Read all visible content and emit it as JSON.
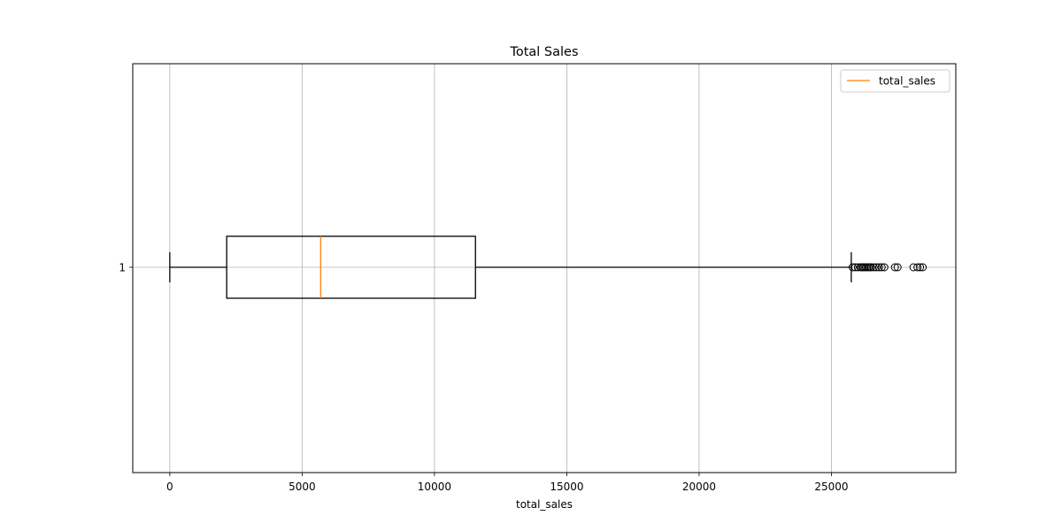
{
  "chart_data": {
    "type": "boxplot",
    "orientation": "horizontal",
    "title": "Total Sales",
    "xlabel": "total_sales",
    "ylabel": "",
    "xlim": [
      -1400,
      29700
    ],
    "xticks": [
      0,
      5000,
      10000,
      15000,
      20000,
      25000
    ],
    "yticks": [
      "1"
    ],
    "grid": true,
    "legend": {
      "placement": "top-right",
      "entries": [
        {
          "label": "total_sales",
          "color": "#ff7f0e"
        }
      ]
    },
    "box": {
      "category": "1",
      "whisker_low": 0,
      "q1": 2150,
      "median": 5700,
      "q3": 11550,
      "whisker_high": 25750,
      "outliers": [
        25800,
        25900,
        26000,
        26100,
        26150,
        26200,
        26250,
        26300,
        26350,
        26400,
        26450,
        26500,
        26600,
        26700,
        26800,
        26900,
        27000,
        27400,
        27500,
        28100,
        28250,
        28350,
        28450
      ]
    },
    "colors": {
      "box": "#000000",
      "median": "#ff7f0e",
      "grid": "#b0b0b0"
    }
  }
}
